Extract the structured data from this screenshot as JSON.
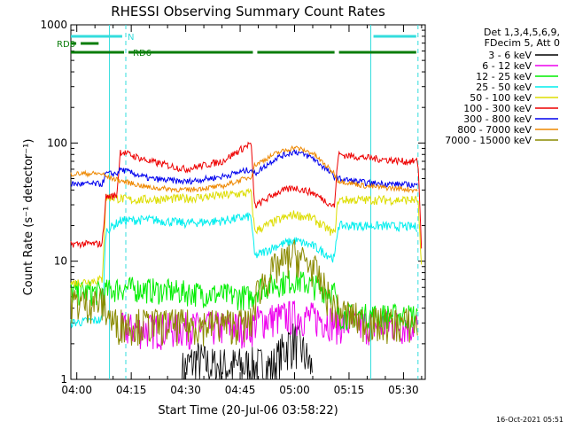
{
  "chart_data": {
    "type": "line",
    "title": "RHESSI Observing Summary Count Rates",
    "xlabel": "Start Time (20-Jul-06 03:58:22)",
    "ylabel": "Count Rate (s⁻¹ detector⁻¹)",
    "yscale": "log",
    "xlim": [
      "03:58:22",
      "05:36:00"
    ],
    "ylim": [
      1,
      1000
    ],
    "grid": false,
    "legend_position": "right",
    "x_ticks": [
      "04:00",
      "04:15",
      "04:30",
      "04:45",
      "05:00",
      "05:15",
      "05:30"
    ],
    "y_ticks": [
      "1",
      "10",
      "100",
      "1000"
    ],
    "legend_header": [
      "Det 1,3,4,5,6,9,",
      "FDecim 5, Att 0"
    ],
    "footer_date": "16-Oct-2021 05:51",
    "flags": [
      {
        "name": "N",
        "color": "#33dddd",
        "segments": [
          [
            "03:58:22",
            "04:13:00"
          ],
          [
            "05:21:00",
            "05:34:00"
          ]
        ]
      },
      {
        "name": "RD0",
        "color": "#0a7d0a",
        "segments": [
          [
            "03:58:22",
            "04:00:20"
          ],
          [
            "04:00:20",
            "04:06:30"
          ]
        ]
      },
      {
        "name": "RD6",
        "color": "#0a7d0a",
        "segments": [
          [
            "03:58:22",
            "04:13:30"
          ],
          [
            "04:13:30",
            "04:49:00"
          ],
          [
            "04:49:00",
            "05:11:30"
          ],
          [
            "05:11:30",
            "05:34:00"
          ]
        ]
      }
    ],
    "vlines_solid": [
      "04:09:00",
      "05:21:00"
    ],
    "vlines_dashed": [
      "04:13:30",
      "05:34:00"
    ],
    "series": [
      {
        "name": "3 - 6 keV",
        "color": "#000000",
        "points": [
          [
            "04:29:00",
            1.2
          ],
          [
            "04:33:00",
            1.5
          ],
          [
            "04:37:00",
            1.3
          ],
          [
            "04:54:00",
            1.3
          ],
          [
            "04:58:00",
            2.0
          ],
          [
            "05:00:00",
            2.2
          ],
          [
            "05:02:00",
            1.8
          ],
          [
            "05:05:00",
            1.2
          ]
        ]
      },
      {
        "name": "6 - 12 keV",
        "color": "#ee00ee",
        "points": [
          [
            "04:12:00",
            2.7
          ],
          [
            "04:25:00",
            2.7
          ],
          [
            "04:35:00",
            2.8
          ],
          [
            "04:48:00",
            2.8
          ],
          [
            "04:50:00",
            3.2
          ],
          [
            "05:00:00",
            3.5
          ],
          [
            "05:10:00",
            3.2
          ],
          [
            "05:11:00",
            3.0
          ],
          [
            "05:22:00",
            2.9
          ],
          [
            "05:34:00",
            2.9
          ]
        ]
      },
      {
        "name": "12 - 25 keV",
        "color": "#00ee00",
        "points": [
          [
            "03:58:22",
            5.5
          ],
          [
            "04:07:00",
            5.5
          ],
          [
            "04:12:00",
            6.0
          ],
          [
            "04:30:00",
            5.5
          ],
          [
            "04:48:00",
            5.0
          ],
          [
            "04:50:00",
            6.0
          ],
          [
            "05:00:00",
            7.0
          ],
          [
            "05:11:00",
            5.5
          ],
          [
            "05:12:00",
            3.5
          ],
          [
            "05:34:00",
            3.5
          ]
        ]
      },
      {
        "name": "25 - 50 keV",
        "color": "#00eeee",
        "points": [
          [
            "03:58:22",
            3.0
          ],
          [
            "04:07:00",
            3.2
          ],
          [
            "04:08:00",
            18.0
          ],
          [
            "04:12:00",
            22.0
          ],
          [
            "04:20:00",
            22.5
          ],
          [
            "04:30:00",
            21.0
          ],
          [
            "04:40:00",
            22.0
          ],
          [
            "04:48:00",
            24.0
          ],
          [
            "04:49:00",
            11.0
          ],
          [
            "04:55:00",
            13.5
          ],
          [
            "05:00:00",
            15.0
          ],
          [
            "05:05:00",
            13.5
          ],
          [
            "05:11:00",
            10.5
          ],
          [
            "05:12:00",
            20.0
          ],
          [
            "05:20:00",
            20.0
          ],
          [
            "05:34:00",
            19.5
          ]
        ]
      },
      {
        "name": "50 - 100 keV",
        "color": "#dddd00",
        "points": [
          [
            "03:58:22",
            6.5
          ],
          [
            "04:07:00",
            7.0
          ],
          [
            "04:08:00",
            35.0
          ],
          [
            "04:15:00",
            33.0
          ],
          [
            "04:30:00",
            34.0
          ],
          [
            "04:40:00",
            36.0
          ],
          [
            "04:48:00",
            38.0
          ],
          [
            "04:49:00",
            18.0
          ],
          [
            "04:55:00",
            22.0
          ],
          [
            "05:00:00",
            25.0
          ],
          [
            "05:05:00",
            23.0
          ],
          [
            "05:11:00",
            17.0
          ],
          [
            "05:12:00",
            33.0
          ],
          [
            "05:25:00",
            33.0
          ],
          [
            "05:34:00",
            33.0
          ],
          [
            "05:35:00",
            8.0
          ]
        ]
      },
      {
        "name": "100 - 300 keV",
        "color": "#ee0000",
        "points": [
          [
            "03:58:22",
            14.0
          ],
          [
            "04:07:00",
            14.0
          ],
          [
            "04:08:00",
            35.0
          ],
          [
            "04:11:00",
            36.0
          ],
          [
            "04:12:00",
            85.0
          ],
          [
            "04:20:00",
            70.0
          ],
          [
            "04:30:00",
            60.0
          ],
          [
            "04:40:00",
            70.0
          ],
          [
            "04:48:00",
            100.0
          ],
          [
            "04:49:00",
            29.0
          ],
          [
            "04:55:00",
            38.0
          ],
          [
            "05:00:00",
            42.0
          ],
          [
            "05:05:00",
            38.0
          ],
          [
            "05:11:00",
            29.0
          ],
          [
            "05:12:00",
            80.0
          ],
          [
            "05:20:00",
            75.0
          ],
          [
            "05:30:00",
            70.0
          ],
          [
            "05:34:00",
            70.0
          ],
          [
            "05:35:00",
            12.0
          ]
        ]
      },
      {
        "name": "300 - 800 keV",
        "color": "#0000ee",
        "points": [
          [
            "03:58:22",
            45.0
          ],
          [
            "04:07:00",
            45.0
          ],
          [
            "04:08:00",
            55.0
          ],
          [
            "04:11:00",
            55.0
          ],
          [
            "04:12:00",
            60.0
          ],
          [
            "04:20:00",
            50.0
          ],
          [
            "04:30:00",
            47.0
          ],
          [
            "04:40:00",
            52.0
          ],
          [
            "04:48:00",
            60.0
          ],
          [
            "04:49:00",
            55.0
          ],
          [
            "04:55:00",
            75.0
          ],
          [
            "05:00:00",
            85.0
          ],
          [
            "05:05:00",
            75.0
          ],
          [
            "05:11:00",
            52.0
          ],
          [
            "05:12:00",
            50.0
          ],
          [
            "05:20:00",
            46.0
          ],
          [
            "05:34:00",
            44.0
          ]
        ]
      },
      {
        "name": "800 - 7000 keV",
        "color": "#ee8800",
        "points": [
          [
            "03:58:22",
            55.0
          ],
          [
            "04:07:00",
            55.0
          ],
          [
            "04:08:00",
            52.0
          ],
          [
            "04:12:00",
            48.0
          ],
          [
            "04:20:00",
            42.0
          ],
          [
            "04:30:00",
            40.0
          ],
          [
            "04:40:00",
            43.0
          ],
          [
            "04:48:00",
            52.0
          ],
          [
            "04:49:00",
            65.0
          ],
          [
            "04:55:00",
            82.0
          ],
          [
            "05:00:00",
            92.0
          ],
          [
            "05:05:00",
            82.0
          ],
          [
            "05:11:00",
            55.0
          ],
          [
            "05:12:00",
            48.0
          ],
          [
            "05:20:00",
            43.0
          ],
          [
            "05:34:00",
            40.0
          ]
        ]
      },
      {
        "name": "7000 - 15000 keV",
        "color": "#8a8a00",
        "points": [
          [
            "03:58:22",
            4.5
          ],
          [
            "04:07:00",
            4.5
          ],
          [
            "04:10:00",
            3.0
          ],
          [
            "04:30:00",
            2.9
          ],
          [
            "04:48:00",
            3.0
          ],
          [
            "04:50:00",
            6.0
          ],
          [
            "04:55:00",
            9.0
          ],
          [
            "05:00:00",
            11.5
          ],
          [
            "05:05:00",
            9.0
          ],
          [
            "05:11:00",
            4.0
          ],
          [
            "05:20:00",
            3.0
          ],
          [
            "05:34:00",
            3.0
          ]
        ]
      }
    ]
  }
}
